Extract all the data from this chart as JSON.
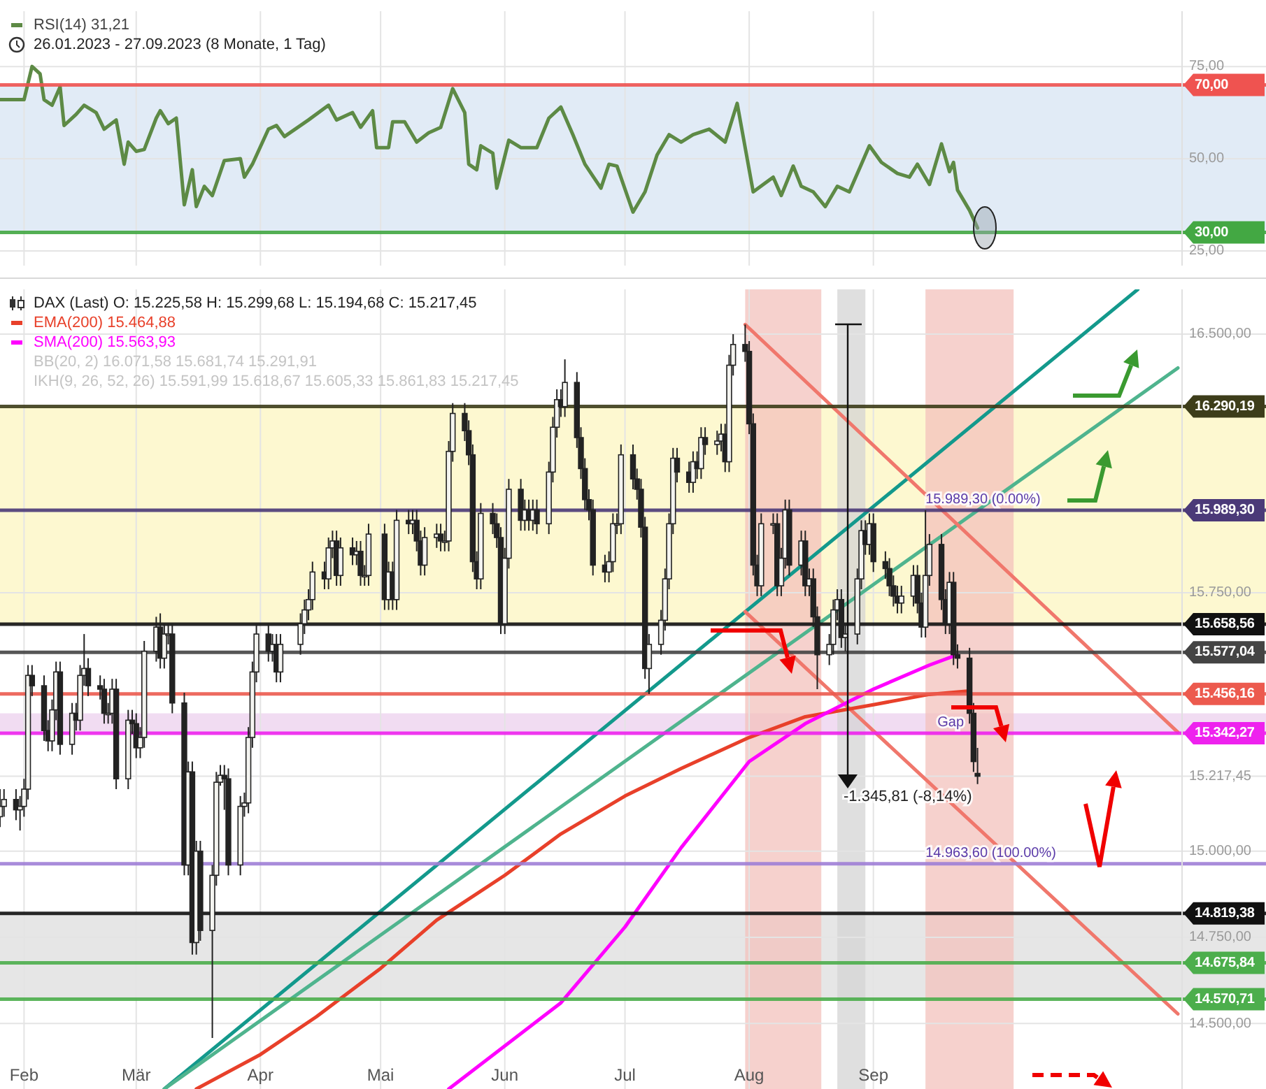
{
  "chart_data": [
    {
      "type": "line",
      "subtitle": "26.01.2023 - 27.09.2023   (8 Monate, 1 Tag)",
      "legend": "top left",
      "grid": true,
      "tick_labels": "y",
      "xlim": [
        "2023-01-26",
        "2023-12-08"
      ],
      "ylim": [
        21,
        90
      ],
      "xticks": [
        {
          "value": "2023-02-01",
          "label": null
        },
        {
          "value": "2023-03-01",
          "label": null
        },
        {
          "value": "2023-04-01",
          "label": null
        },
        {
          "value": "2023-05-01",
          "label": null
        },
        {
          "value": "2023-06-01",
          "label": null
        },
        {
          "value": "2023-07-01",
          "label": null
        },
        {
          "value": "2023-08-01",
          "label": null
        },
        {
          "value": "2023-09-01",
          "label": null
        }
      ],
      "yticks": [
        {
          "value": 25,
          "label": "25,00"
        },
        {
          "value": 50,
          "label": "50,00"
        },
        {
          "value": 75,
          "label": "75,00"
        }
      ],
      "bands": [
        {
          "axis": "y",
          "from": 30,
          "to": 70,
          "color": "#dce8f4"
        }
      ],
      "ref_lines": [
        {
          "axis": "y",
          "value": 70,
          "label": "70,00",
          "color": "#ef5350"
        },
        {
          "axis": "y",
          "value": 30,
          "label": "30,00",
          "color": "#43a843"
        }
      ],
      "series": [
        {
          "name": "RSI(14)  31,21",
          "color": "#5d8a45",
          "x": [
            "2023-01-26",
            "2023-02-01",
            "2023-02-03",
            "2023-02-05",
            "2023-02-06",
            "2023-02-08",
            "2023-02-10",
            "2023-02-11",
            "2023-02-14",
            "2023-02-16",
            "2023-02-19",
            "2023-02-21",
            "2023-02-24",
            "2023-02-26",
            "2023-02-27",
            "2023-03-01",
            "2023-03-03",
            "2023-03-06",
            "2023-03-07",
            "2023-03-09",
            "2023-03-11",
            "2023-03-13",
            "2023-03-15",
            "2023-03-16",
            "2023-03-18",
            "2023-03-20",
            "2023-03-23",
            "2023-03-27",
            "2023-03-28",
            "2023-03-30",
            "2023-04-03",
            "2023-04-05",
            "2023-04-07",
            "2023-04-13",
            "2023-04-18",
            "2023-04-20",
            "2023-04-24",
            "2023-04-26",
            "2023-04-29",
            "2023-04-30",
            "2023-05-03",
            "2023-05-04",
            "2023-05-07",
            "2023-05-10",
            "2023-05-13",
            "2023-05-16",
            "2023-05-19",
            "2023-05-22",
            "2023-05-23",
            "2023-05-25",
            "2023-05-26",
            "2023-05-29",
            "2023-05-30",
            "2023-06-02",
            "2023-06-05",
            "2023-06-09",
            "2023-06-12",
            "2023-06-15",
            "2023-06-18",
            "2023-06-21",
            "2023-06-25",
            "2023-06-27",
            "2023-06-29",
            "2023-07-03",
            "2023-07-06",
            "2023-07-09",
            "2023-07-12",
            "2023-07-15",
            "2023-07-18",
            "2023-07-22",
            "2023-07-26",
            "2023-07-29",
            "2023-08-02",
            "2023-08-07",
            "2023-08-09",
            "2023-08-12",
            "2023-08-14",
            "2023-08-17",
            "2023-08-20",
            "2023-08-23",
            "2023-08-26",
            "2023-08-29",
            "2023-08-31",
            "2023-09-03",
            "2023-09-07",
            "2023-09-10",
            "2023-09-12",
            "2023-09-15",
            "2023-09-18",
            "2023-09-20",
            "2023-09-21",
            "2023-09-22",
            "2023-09-25",
            "2023-09-27"
          ],
          "values": [
            66,
            66,
            75,
            73,
            66,
            64.5,
            69.5,
            59,
            62,
            64.5,
            62.5,
            58,
            60.5,
            48.5,
            54.5,
            52,
            52.5,
            61,
            63,
            59.5,
            61,
            37.5,
            47,
            37,
            42.5,
            40,
            49.5,
            50,
            45,
            48.5,
            58,
            59,
            56,
            60.5,
            64.5,
            60.5,
            62.5,
            58.5,
            63,
            53,
            53,
            60,
            60,
            54.5,
            57,
            58.5,
            69,
            62.5,
            48.5,
            47,
            53.5,
            51.5,
            42,
            55,
            53,
            53,
            61,
            64,
            56.5,
            48.5,
            42,
            48.5,
            48,
            35.5,
            41,
            51,
            56.5,
            54.5,
            56.5,
            58,
            54.5,
            65,
            41,
            45,
            40,
            48,
            42.5,
            41,
            37,
            42.5,
            41,
            48.5,
            53.5,
            49,
            46,
            45,
            48.5,
            43,
            54,
            46.5,
            49,
            41.5,
            36,
            31.21
          ]
        }
      ]
    },
    {
      "type": "candlestick",
      "title": "DAX (Last)  O: 15.225,58  H: 15.299,68  L: 15.194,68  C: 15.217,45",
      "legend": "top left",
      "grid": true,
      "xlim": [
        "2023-01-26",
        "2023-12-08"
      ],
      "ylim": [
        14310,
        16630
      ],
      "xticks": [
        {
          "value": "2023-02-01",
          "label": "Feb"
        },
        {
          "value": "2023-03-01",
          "label": "Mär"
        },
        {
          "value": "2023-04-01",
          "label": "Apr"
        },
        {
          "value": "2023-05-01",
          "label": "Mai"
        },
        {
          "value": "2023-06-01",
          "label": "Jun"
        },
        {
          "value": "2023-07-01",
          "label": "Jul"
        },
        {
          "value": "2023-08-01",
          "label": "Aug"
        },
        {
          "value": "2023-09-01",
          "label": "Sep"
        }
      ],
      "yticks": [
        {
          "value": 14500,
          "label": "14.500,00"
        },
        {
          "value": 14750,
          "label": "14.750,00"
        },
        {
          "value": 15000,
          "label": "15.000,00"
        },
        {
          "value": 15217.45,
          "label": "15.217,45"
        },
        {
          "value": 15750,
          "label": "15.750,00"
        },
        {
          "value": 16500,
          "label": "16.500,00"
        }
      ],
      "x": [
        "2023-01-26",
        "2023-01-27",
        "2023-01-30",
        "2023-01-31",
        "2023-02-01",
        "2023-02-02",
        "2023-02-03",
        "2023-02-06",
        "2023-02-07",
        "2023-02-08",
        "2023-02-09",
        "2023-02-10",
        "2023-02-13",
        "2023-02-14",
        "2023-02-15",
        "2023-02-16",
        "2023-02-17",
        "2023-02-20",
        "2023-02-21",
        "2023-02-22",
        "2023-02-23",
        "2023-02-24",
        "2023-02-27",
        "2023-02-28",
        "2023-03-01",
        "2023-03-02",
        "2023-03-03",
        "2023-03-06",
        "2023-03-07",
        "2023-03-08",
        "2023-03-09",
        "2023-03-10",
        "2023-03-13",
        "2023-03-14",
        "2023-03-15",
        "2023-03-16",
        "2023-03-17",
        "2023-03-20",
        "2023-03-21",
        "2023-03-22",
        "2023-03-23",
        "2023-03-24",
        "2023-03-27",
        "2023-03-28",
        "2023-03-29",
        "2023-03-30",
        "2023-03-31",
        "2023-04-03",
        "2023-04-04",
        "2023-04-05",
        "2023-04-06",
        "2023-04-11",
        "2023-04-12",
        "2023-04-13",
        "2023-04-14",
        "2023-04-17",
        "2023-04-18",
        "2023-04-19",
        "2023-04-20",
        "2023-04-21",
        "2023-04-24",
        "2023-04-25",
        "2023-04-26",
        "2023-04-27",
        "2023-04-28",
        "2023-05-02",
        "2023-05-03",
        "2023-05-04",
        "2023-05-05",
        "2023-05-08",
        "2023-05-09",
        "2023-05-10",
        "2023-05-11",
        "2023-05-12",
        "2023-05-15",
        "2023-05-16",
        "2023-05-17",
        "2023-05-18",
        "2023-05-19",
        "2023-05-22",
        "2023-05-23",
        "2023-05-24",
        "2023-05-25",
        "2023-05-26",
        "2023-05-29",
        "2023-05-30",
        "2023-05-31",
        "2023-06-01",
        "2023-06-02",
        "2023-06-05",
        "2023-06-06",
        "2023-06-07",
        "2023-06-08",
        "2023-06-09",
        "2023-06-12",
        "2023-06-13",
        "2023-06-14",
        "2023-06-15",
        "2023-06-16",
        "2023-06-19",
        "2023-06-20",
        "2023-06-21",
        "2023-06-22",
        "2023-06-23",
        "2023-06-26",
        "2023-06-27",
        "2023-06-28",
        "2023-06-29",
        "2023-06-30",
        "2023-07-03",
        "2023-07-04",
        "2023-07-05",
        "2023-07-06",
        "2023-07-07",
        "2023-07-10",
        "2023-07-11",
        "2023-07-12",
        "2023-07-13",
        "2023-07-14",
        "2023-07-17",
        "2023-07-18",
        "2023-07-19",
        "2023-07-20",
        "2023-07-21",
        "2023-07-24",
        "2023-07-25",
        "2023-07-26",
        "2023-07-27",
        "2023-07-28",
        "2023-07-31",
        "2023-08-01",
        "2023-08-02",
        "2023-08-03",
        "2023-08-04",
        "2023-08-07",
        "2023-08-08",
        "2023-08-09",
        "2023-08-10",
        "2023-08-11",
        "2023-08-14",
        "2023-08-15",
        "2023-08-16",
        "2023-08-17",
        "2023-08-18",
        "2023-08-21",
        "2023-08-22",
        "2023-08-23",
        "2023-08-24",
        "2023-08-25",
        "2023-08-28",
        "2023-08-29",
        "2023-08-30",
        "2023-08-31",
        "2023-09-01",
        "2023-09-04",
        "2023-09-05",
        "2023-09-06",
        "2023-09-07",
        "2023-09-08",
        "2023-09-11",
        "2023-09-12",
        "2023-09-13",
        "2023-09-14",
        "2023-09-15",
        "2023-09-18",
        "2023-09-19",
        "2023-09-20",
        "2023-09-21",
        "2023-09-22",
        "2023-09-25",
        "2023-09-26",
        "2023-09-27"
      ],
      "ohlc": [
        [
          15100,
          15180,
          15070,
          15130
        ],
        [
          15130,
          15180,
          15100,
          15150
        ],
        [
          15150,
          15180,
          15090,
          15120
        ],
        [
          15120,
          15160,
          15060,
          15130
        ],
        [
          15130,
          15210,
          15100,
          15180
        ],
        [
          15180,
          15540,
          15150,
          15510
        ],
        [
          15510,
          15540,
          15450,
          15480
        ],
        [
          15480,
          15510,
          15320,
          15350
        ],
        [
          15350,
          15380,
          15290,
          15320
        ],
        [
          15320,
          15440,
          15290,
          15410
        ],
        [
          15410,
          15550,
          15380,
          15520
        ],
        [
          15520,
          15550,
          15280,
          15310
        ],
        [
          15310,
          15430,
          15280,
          15400
        ],
        [
          15400,
          15430,
          15350,
          15380
        ],
        [
          15380,
          15540,
          15350,
          15510
        ],
        [
          15510,
          15630,
          15480,
          15530
        ],
        [
          15530,
          15560,
          15450,
          15480
        ],
        [
          15480,
          15510,
          15440,
          15470
        ],
        [
          15470,
          15500,
          15370,
          15400
        ],
        [
          15400,
          15430,
          15370,
          15400
        ],
        [
          15400,
          15500,
          15370,
          15470
        ],
        [
          15470,
          15500,
          15180,
          15210
        ],
        [
          15210,
          15410,
          15180,
          15380
        ],
        [
          15380,
          15410,
          15340,
          15370
        ],
        [
          15370,
          15400,
          15270,
          15300
        ],
        [
          15300,
          15360,
          15270,
          15330
        ],
        [
          15330,
          15610,
          15300,
          15580
        ],
        [
          15580,
          15680,
          15550,
          15650
        ],
        [
          15650,
          15690,
          15530,
          15560
        ],
        [
          15560,
          15660,
          15530,
          15630
        ],
        [
          15630,
          15660,
          15600,
          15630
        ],
        [
          15630,
          15660,
          15400,
          15430
        ],
        [
          15430,
          15460,
          14930,
          14960
        ],
        [
          14960,
          15260,
          14930,
          15230
        ],
        [
          15230,
          15260,
          14700,
          14735
        ],
        [
          14735,
          15030,
          14700,
          15000
        ],
        [
          15000,
          15030,
          14740,
          14770
        ],
        [
          14770,
          14960,
          14458,
          14930
        ],
        [
          14930,
          15230,
          14900,
          15200
        ],
        [
          15200,
          15250,
          15190,
          15220
        ],
        [
          15220,
          15250,
          15120,
          15210
        ],
        [
          15210,
          15240,
          14930,
          14960
        ],
        [
          14960,
          15160,
          14930,
          15130
        ],
        [
          15130,
          15170,
          15100,
          15140
        ],
        [
          15140,
          15360,
          15110,
          15330
        ],
        [
          15330,
          15550,
          15300,
          15520
        ],
        [
          15520,
          15660,
          15490,
          15630
        ],
        [
          15630,
          15660,
          15550,
          15580
        ],
        [
          15580,
          15630,
          15550,
          15600
        ],
        [
          15600,
          15630,
          15490,
          15520
        ],
        [
          15520,
          15630,
          15490,
          15600
        ],
        [
          15600,
          15690,
          15570,
          15660
        ],
        [
          15660,
          15730,
          15630,
          15700
        ],
        [
          15700,
          15760,
          15670,
          15730
        ],
        [
          15730,
          15840,
          15700,
          15810
        ],
        [
          15810,
          15840,
          15760,
          15790
        ],
        [
          15790,
          15910,
          15760,
          15880
        ],
        [
          15880,
          15930,
          15850,
          15900
        ],
        [
          15900,
          15930,
          15770,
          15800
        ],
        [
          15800,
          15910,
          15770,
          15880
        ],
        [
          15880,
          15910,
          15830,
          15860
        ],
        [
          15860,
          15900,
          15830,
          15870
        ],
        [
          15870,
          15900,
          15770,
          15800
        ],
        [
          15800,
          15830,
          15770,
          15800
        ],
        [
          15800,
          15950,
          15770,
          15920
        ],
        [
          15920,
          15950,
          15700,
          15730
        ],
        [
          15730,
          15840,
          15700,
          15810
        ],
        [
          15810,
          15840,
          15700,
          15730
        ],
        [
          15730,
          15990,
          15700,
          15960
        ],
        [
          15960,
          15990,
          15920,
          15950
        ],
        [
          15950,
          15990,
          15920,
          15960
        ],
        [
          15960,
          15990,
          15870,
          15900
        ],
        [
          15900,
          15930,
          15800,
          15830
        ],
        [
          15830,
          15940,
          15800,
          15910
        ],
        [
          15910,
          15950,
          15880,
          15920
        ],
        [
          15920,
          15950,
          15870,
          15900
        ],
        [
          15900,
          15930,
          15870,
          15900
        ],
        [
          15900,
          16190,
          15870,
          16160
        ],
        [
          16160,
          16300,
          16130,
          16270
        ],
        [
          16270,
          16300,
          16190,
          16220
        ],
        [
          16220,
          16250,
          16120,
          16150
        ],
        [
          16150,
          16180,
          15810,
          15840
        ],
        [
          15840,
          15870,
          15760,
          15790
        ],
        [
          15790,
          16010,
          15760,
          15980
        ],
        [
          15980,
          16010,
          15920,
          15950
        ],
        [
          15950,
          15980,
          15880,
          15910
        ],
        [
          15910,
          15940,
          15630,
          15660
        ],
        [
          15660,
          15880,
          15630,
          15850
        ],
        [
          15850,
          16080,
          15820,
          16050
        ],
        [
          16050,
          16080,
          15930,
          15960
        ],
        [
          15960,
          16020,
          15930,
          15990
        ],
        [
          15990,
          16020,
          15930,
          15960
        ],
        [
          15960,
          16020,
          15930,
          15990
        ],
        [
          15990,
          16020,
          15920,
          15950
        ],
        [
          15950,
          16130,
          15920,
          16100
        ],
        [
          16100,
          16260,
          16070,
          16230
        ],
        [
          16230,
          16340,
          16200,
          16310
        ],
        [
          16310,
          16340,
          16260,
          16290
        ],
        [
          16290,
          16427,
          16260,
          16360
        ],
        [
          16360,
          16390,
          16170,
          16200
        ],
        [
          16200,
          16230,
          16080,
          16110
        ],
        [
          16110,
          16140,
          15990,
          16020
        ],
        [
          16020,
          16050,
          15960,
          15990
        ],
        [
          15990,
          16020,
          15800,
          15830
        ],
        [
          15830,
          15860,
          15780,
          15810
        ],
        [
          15810,
          15870,
          15780,
          15840
        ],
        [
          15840,
          15980,
          15810,
          15950
        ],
        [
          15950,
          15980,
          15920,
          15950
        ],
        [
          15950,
          16180,
          15920,
          16150
        ],
        [
          16150,
          16180,
          16050,
          16080
        ],
        [
          16080,
          16110,
          16020,
          16050
        ],
        [
          16050,
          16080,
          15910,
          15940
        ],
        [
          15940,
          15970,
          15500,
          15530
        ],
        [
          15530,
          15630,
          15456,
          15600
        ],
        [
          15600,
          15700,
          15570,
          15670
        ],
        [
          15670,
          15820,
          15640,
          15790
        ],
        [
          15790,
          15980,
          15760,
          15950
        ],
        [
          15950,
          16170,
          15920,
          16140
        ],
        [
          16140,
          16170,
          16070,
          16100
        ],
        [
          16100,
          16130,
          16040,
          16070
        ],
        [
          16070,
          16160,
          16040,
          16130
        ],
        [
          16130,
          16160,
          16080,
          16110
        ],
        [
          16110,
          16230,
          16080,
          16200
        ],
        [
          16200,
          16230,
          16150,
          16180
        ],
        [
          16180,
          16220,
          16150,
          16190
        ],
        [
          16190,
          16240,
          16160,
          16210
        ],
        [
          16210,
          16240,
          16100,
          16130
        ],
        [
          16130,
          16440,
          16100,
          16410
        ],
        [
          16410,
          16500,
          16380,
          16470
        ],
        [
          16470,
          16528,
          16420,
          16450
        ],
        [
          16450,
          16480,
          16210,
          16240
        ],
        [
          16240,
          16270,
          15800,
          15830
        ],
        [
          15830,
          15860,
          15740,
          15770
        ],
        [
          15770,
          15980,
          15740,
          15950
        ],
        [
          15950,
          15980,
          15920,
          15950
        ],
        [
          15950,
          15980,
          15740,
          15770
        ],
        [
          15770,
          15880,
          15740,
          15850
        ],
        [
          15850,
          16020,
          15820,
          15990
        ],
        [
          15990,
          16020,
          15800,
          15830
        ],
        [
          15830,
          15930,
          15800,
          15900
        ],
        [
          15900,
          15930,
          15740,
          15770
        ],
        [
          15770,
          15820,
          15740,
          15790
        ],
        [
          15790,
          15820,
          15650,
          15680
        ],
        [
          15680,
          15710,
          15470,
          15570
        ],
        [
          15570,
          15630,
          15540,
          15600
        ],
        [
          15600,
          15730,
          15570,
          15700
        ],
        [
          15700,
          15760,
          15670,
          15730
        ],
        [
          15730,
          15760,
          15590,
          15620
        ],
        [
          15620,
          15660,
          15580,
          15630
        ],
        [
          15630,
          15820,
          15600,
          15790
        ],
        [
          15790,
          15960,
          15760,
          15930
        ],
        [
          15930,
          15960,
          15860,
          15890
        ],
        [
          15890,
          15980,
          15860,
          15950
        ],
        [
          15950,
          15980,
          15810,
          15840
        ],
        [
          15840,
          15870,
          15790,
          15820
        ],
        [
          15820,
          15850,
          15740,
          15770
        ],
        [
          15770,
          15800,
          15710,
          15740
        ],
        [
          15740,
          15770,
          15690,
          15720
        ],
        [
          15720,
          15770,
          15690,
          15740
        ],
        [
          15740,
          15830,
          15710,
          15800
        ],
        [
          15800,
          15830,
          15690,
          15720
        ],
        [
          15720,
          15750,
          15620,
          15650
        ],
        [
          15650,
          15989.3,
          15620,
          15800
        ],
        [
          15800,
          15920,
          15770,
          15890
        ],
        [
          15890,
          15920,
          15700,
          15730
        ],
        [
          15730,
          15760,
          15630,
          15660
        ],
        [
          15660,
          15810,
          15630,
          15780
        ],
        [
          15780,
          15810,
          15540,
          15570
        ],
        [
          15570,
          15600,
          15530,
          15560
        ],
        [
          15560,
          15590,
          15370,
          15400
        ],
        [
          15400,
          15430,
          15230,
          15260
        ],
        [
          15225.58,
          15299.68,
          15194.68,
          15217.45
        ]
      ],
      "series": [
        {
          "type": "line",
          "color": "#13998c",
          "x": [
            "2023-03-08",
            "2023-11-06"
          ],
          "values": [
            14310,
            16630
          ]
        },
        {
          "type": "line",
          "color": "#4fb48e",
          "x": [
            "2023-03-08",
            "2023-11-16"
          ],
          "values": [
            14310,
            16402
          ]
        },
        {
          "type": "line",
          "color": "#f0776c",
          "x": [
            "2023-07-31",
            "2023-11-16"
          ],
          "values": [
            16528,
            15345
          ]
        },
        {
          "type": "line",
          "color": "#f0776c",
          "x": [
            "2023-07-31",
            "2023-11-16"
          ],
          "values": [
            15695,
            14528
          ]
        },
        {
          "type": "line",
          "name": "EMA(200)  15.464,88",
          "color": "#e8402a",
          "x": [
            "2023-03-16",
            "2023-04-01",
            "2023-04-15",
            "2023-05-01",
            "2023-05-15",
            "2023-06-01",
            "2023-06-15",
            "2023-07-01",
            "2023-07-15",
            "2023-08-01",
            "2023-08-15",
            "2023-09-01",
            "2023-09-15",
            "2023-09-25"
          ],
          "values": [
            14310,
            14410,
            14520,
            14660,
            14800,
            14930,
            15050,
            15160,
            15240,
            15330,
            15390,
            15425,
            15455,
            15465
          ]
        },
        {
          "type": "line",
          "name": "SMA(200)  15.563,93",
          "color": "#ff00ff",
          "x": [
            "2023-05-18",
            "2023-06-15",
            "2023-07-01",
            "2023-07-15",
            "2023-08-01",
            "2023-08-15",
            "2023-09-01",
            "2023-09-15",
            "2023-09-22"
          ],
          "values": [
            14310,
            14560,
            14780,
            15010,
            15260,
            15370,
            15470,
            15540,
            15570
          ]
        }
      ],
      "bands": [
        {
          "axis": "y",
          "from": 15658.56,
          "to": 16290.19,
          "color": "#fdf7c8"
        },
        {
          "axis": "y",
          "from": 14570.71,
          "to": 14819.38,
          "color": "#e2e2e2"
        },
        {
          "axis": "y",
          "from": 15342.27,
          "to": 15400,
          "color": "#eed6f0"
        },
        {
          "axis": "x",
          "from": "2023-07-31",
          "to": "2023-08-19",
          "color": "#f3c2bc"
        },
        {
          "axis": "x",
          "from": "2023-08-23",
          "to": "2023-08-30",
          "color": "#d4d4d4"
        },
        {
          "axis": "x",
          "from": "2023-09-14",
          "to": "2023-10-06",
          "color": "#f3c2bc"
        }
      ],
      "ref_lines": [
        {
          "axis": "y",
          "value": 16290.19,
          "label": "16.290,19",
          "color": "#3d3d1a"
        },
        {
          "axis": "y",
          "value": 15989.3,
          "label": "15.989,30",
          "color": "#4b3a78"
        },
        {
          "axis": "y",
          "value": 15658.56,
          "label": "15.658,56",
          "color": "#111111"
        },
        {
          "axis": "y",
          "value": 15577.04,
          "label": "15.577,04",
          "color": "#444444"
        },
        {
          "axis": "y",
          "value": 15456.16,
          "label": "15.456,16",
          "color": "#ec5a4e"
        },
        {
          "axis": "y",
          "value": 15342.27,
          "label": "15.342,27",
          "color": "#ee22ee"
        },
        {
          "axis": "y",
          "value": 14963.6,
          "label": null,
          "color": "#9f7fd6"
        },
        {
          "axis": "y",
          "value": 14819.38,
          "label": "14.819,38",
          "color": "#111111"
        },
        {
          "axis": "y",
          "value": 14675.84,
          "label": "14.675,84",
          "color": "#4cae4c"
        },
        {
          "axis": "y",
          "value": 14570.71,
          "label": "14.570,71",
          "color": "#4cae4c"
        }
      ],
      "annotations": [
        "BB(20, 2)  16.071,58  15.681,74  15.291,91",
        "IKH(9, 26, 52, 26)  15.591,99  15.618,67  15.605,33  15.861,83  15.217,45",
        {
          "text": "15.989,30 (0.00%)",
          "x": "2023-09-14",
          "y": 15989.3
        },
        {
          "text": "14.963,60 (100.00%)",
          "x": "2023-09-14",
          "y": 14963.6
        },
        {
          "text": "Gap",
          "x": "2023-09-17",
          "y": 15342.27
        },
        "-1.345,81 (-8,14%)"
      ]
    }
  ]
}
